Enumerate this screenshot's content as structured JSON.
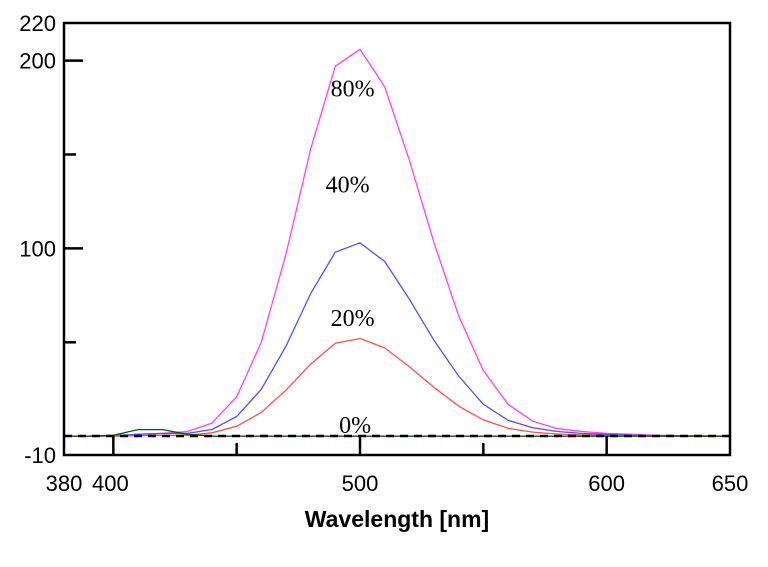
{
  "chart_data": {
    "type": "line",
    "title": "",
    "xlabel": "Wavelength [nm]",
    "ylabel": "",
    "xlim": [
      380,
      650
    ],
    "ylim": [
      -10,
      220
    ],
    "x_ticks": [
      380,
      400,
      500,
      600,
      650
    ],
    "x_minor_ticks": [
      450,
      550
    ],
    "y_ticks": [
      -10,
      100,
      200,
      220
    ],
    "y_minor_ticks": [
      50,
      150
    ],
    "grid": false,
    "x": [
      380,
      390,
      400,
      410,
      420,
      430,
      440,
      450,
      460,
      470,
      480,
      490,
      500,
      510,
      520,
      530,
      540,
      550,
      560,
      570,
      580,
      590,
      600,
      610,
      620,
      630,
      640,
      650
    ],
    "series": [
      {
        "name": "80%",
        "color": "#ff40ff",
        "dashed": false,
        "values": [
          0,
          0,
          0.3,
          1,
          1.5,
          2.5,
          7,
          21,
          50,
          97,
          153,
          197,
          206,
          186,
          147,
          103,
          64,
          35,
          17,
          8,
          4,
          2.5,
          1.5,
          1,
          0.5,
          0.3,
          0.2,
          0
        ]
      },
      {
        "name": "40%",
        "color": "#5050ff",
        "dashed": false,
        "values": [
          0,
          0,
          0.3,
          1,
          1.5,
          1.5,
          3.6,
          10.5,
          25,
          48,
          76,
          98,
          103,
          93,
          73,
          51,
          32,
          17,
          8.5,
          4.5,
          2.5,
          1.5,
          1,
          0.5,
          0.3,
          0.2,
          0.1,
          0
        ]
      },
      {
        "name": "20%",
        "color": "#ff5050",
        "dashed": false,
        "values": [
          0,
          0,
          0,
          0.3,
          0.5,
          0.5,
          1.8,
          5.3,
          12.7,
          24.5,
          38.4,
          49.5,
          52,
          47,
          37,
          26,
          16,
          8.7,
          4.2,
          2.2,
          1.2,
          0.7,
          0.4,
          0.2,
          0.1,
          0,
          0,
          0
        ]
      },
      {
        "name": "0%",
        "color": "#006000",
        "dashed": true,
        "values": [
          0,
          0,
          0.5,
          3.5,
          3.5,
          1,
          0,
          0,
          0,
          0,
          0,
          0,
          0,
          0,
          0,
          0,
          0,
          0,
          0,
          0,
          0,
          0,
          0,
          0,
          0,
          0,
          0,
          0
        ]
      }
    ],
    "annotations": [
      {
        "text": "80%",
        "x": 497,
        "y": 185
      },
      {
        "text": "40%",
        "x": 495,
        "y": 134
      },
      {
        "text": "20%",
        "x": 497,
        "y": 63
      },
      {
        "text": "0%",
        "x": 498,
        "y": 6
      }
    ]
  }
}
